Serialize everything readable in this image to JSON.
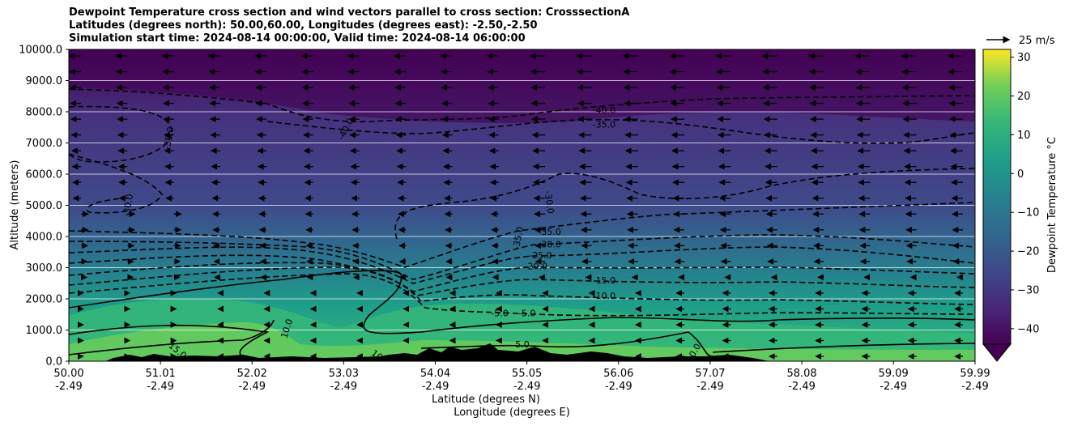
{
  "chart_data": {
    "type": "heatmap",
    "title_lines": [
      "Dewpoint Temperature cross section and wind vectors parallel to cross section: CrosssectionA",
      "Latitudes (degrees north): 50.00,60.00, Longitudes (degrees east): -2.50,-2.50",
      "Simulation start time: 2024-08-14 00:00:00, Valid time: 2024-08-14 06:00:00"
    ],
    "xlabel": "Latitude (degrees N)",
    "xlabel2": "Longitude (degrees E)",
    "ylabel": "Altitude (meters)",
    "x_ticks": [
      {
        "lat": "50.00",
        "lon": "-2.49"
      },
      {
        "lat": "51.01",
        "lon": "-2.49"
      },
      {
        "lat": "52.02",
        "lon": "-2.49"
      },
      {
        "lat": "53.03",
        "lon": "-2.49"
      },
      {
        "lat": "54.04",
        "lon": "-2.49"
      },
      {
        "lat": "55.05",
        "lon": "-2.49"
      },
      {
        "lat": "56.06",
        "lon": "-2.49"
      },
      {
        "lat": "57.07",
        "lon": "-2.49"
      },
      {
        "lat": "58.08",
        "lon": "-2.49"
      },
      {
        "lat": "59.09",
        "lon": "-2.49"
      },
      {
        "lat": "59.99",
        "lon": "-2.49"
      }
    ],
    "xlim": [
      50.0,
      59.99
    ],
    "y_ticks": [
      "0.0",
      "1000.0",
      "2000.0",
      "3000.0",
      "4000.0",
      "5000.0",
      "6000.0",
      "7000.0",
      "8000.0",
      "9000.0",
      "10000.0"
    ],
    "ylim": [
      0,
      10000
    ],
    "grid": "horizontal",
    "colorbar": {
      "label": "Dewpoint Temperature $^\\circ$C",
      "ticks": [
        "30",
        "20",
        "10",
        "0",
        "−10",
        "−20",
        "−30",
        "−40"
      ],
      "range": [
        -44,
        32
      ],
      "colormap": "viridis",
      "extend": "min"
    },
    "quiver_key": {
      "label": "25 m/s"
    },
    "contour_labels": [
      {
        "text": "-40.0",
        "lat": 55.9,
        "alt": 8050,
        "rot": 0
      },
      {
        "text": "-35.0",
        "lat": 55.9,
        "alt": 7600,
        "rot": 0
      },
      {
        "text": "-40.0",
        "lat": 53.05,
        "alt": 7450,
        "rot": -62
      },
      {
        "text": "-35.0",
        "lat": 51.1,
        "alt": 7150,
        "rot": -80
      },
      {
        "text": "-30.0",
        "lat": 50.65,
        "alt": 5000,
        "rot": -80
      },
      {
        "text": "-30.0",
        "lat": 55.3,
        "alt": 5100,
        "rot": 82
      },
      {
        "text": "-35.0",
        "lat": 54.95,
        "alt": 3950,
        "rot": -80
      },
      {
        "text": "-35.0",
        "lat": 55.3,
        "alt": 4150,
        "rot": 0
      },
      {
        "text": "-30.0",
        "lat": 55.3,
        "alt": 3750,
        "rot": 0
      },
      {
        "text": "-25.0",
        "lat": 55.2,
        "alt": 3400,
        "rot": 0
      },
      {
        "text": "-20.0",
        "lat": 55.15,
        "alt": 3050,
        "rot": 0
      },
      {
        "text": "-15.0",
        "lat": 55.9,
        "alt": 2600,
        "rot": 0
      },
      {
        "text": "-10.0",
        "lat": 55.9,
        "alt": 2100,
        "rot": 0
      },
      {
        "text": "-5.0",
        "lat": 54.75,
        "alt": 1550,
        "rot": 0
      },
      {
        "text": "-5.0",
        "lat": 55.05,
        "alt": 1550,
        "rot": 0
      },
      {
        "text": "10.0",
        "lat": 52.4,
        "alt": 1050,
        "rot": -72
      },
      {
        "text": "15.0",
        "lat": 51.2,
        "alt": 350,
        "rot": 40
      },
      {
        "text": "10",
        "lat": 53.4,
        "alt": 200,
        "rot": 35
      },
      {
        "text": "5.0",
        "lat": 55.0,
        "alt": 550,
        "rot": 0
      },
      {
        "text": "0.0",
        "lat": 56.9,
        "alt": 350,
        "rot": -60
      }
    ]
  }
}
